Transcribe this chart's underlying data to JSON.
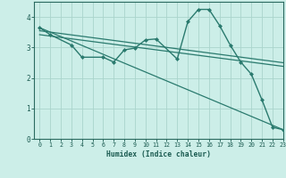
{
  "background_color": "#cceee8",
  "grid_color": "#aad4cc",
  "line_color": "#2a7a6e",
  "xlabel": "Humidex (Indice chaleur)",
  "xlim": [
    -0.5,
    23
  ],
  "ylim": [
    0,
    4.5
  ],
  "xticks": [
    0,
    1,
    2,
    3,
    4,
    5,
    6,
    7,
    8,
    9,
    10,
    11,
    12,
    13,
    14,
    15,
    16,
    17,
    18,
    19,
    20,
    21,
    22,
    23
  ],
  "yticks": [
    0,
    1,
    2,
    3,
    4
  ],
  "series": [
    {
      "x": [
        0,
        1,
        3,
        4,
        6,
        7,
        8,
        9,
        10,
        11,
        13,
        14,
        15,
        16,
        17,
        18,
        19,
        20,
        21,
        22,
        23
      ],
      "y": [
        3.65,
        3.42,
        3.08,
        2.68,
        2.68,
        2.52,
        2.92,
        2.98,
        3.25,
        3.28,
        2.62,
        3.85,
        4.25,
        4.25,
        3.72,
        3.08,
        2.52,
        2.12,
        1.28,
        0.38,
        0.3
      ],
      "marker": "D",
      "markersize": 2.0,
      "linewidth": 1.0,
      "zorder": 5
    },
    {
      "x": [
        0,
        23
      ],
      "y": [
        3.55,
        2.5
      ],
      "marker": null,
      "linewidth": 0.9,
      "zorder": 3
    },
    {
      "x": [
        0,
        23
      ],
      "y": [
        3.42,
        2.38
      ],
      "marker": null,
      "linewidth": 0.9,
      "zorder": 3
    },
    {
      "x": [
        0,
        23
      ],
      "y": [
        3.65,
        0.3
      ],
      "marker": null,
      "linewidth": 0.9,
      "zorder": 3
    }
  ]
}
